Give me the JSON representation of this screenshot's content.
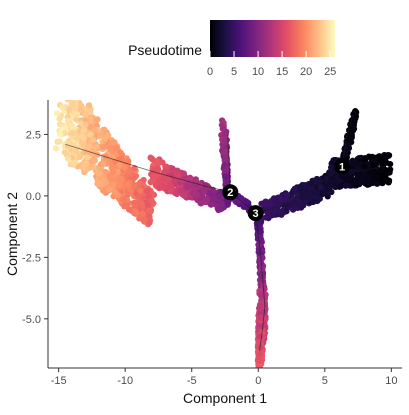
{
  "chart_data": {
    "type": "scatter",
    "title": "",
    "xlabel": "Component 1",
    "ylabel": "Component 2",
    "xlim": [
      -15.8,
      10.8
    ],
    "ylim": [
      -7.0,
      3.9
    ],
    "x_ticks": [
      -15,
      -10,
      -5,
      0,
      5,
      10
    ],
    "y_ticks": [
      2.5,
      0.0,
      -2.5,
      -5.0
    ],
    "grid": false,
    "legend": {
      "title": "Pseudotime",
      "position": "top",
      "range": [
        0,
        26
      ],
      "ticks": [
        0,
        5,
        10,
        15,
        20,
        25
      ],
      "colormap": "magma"
    },
    "branch_points": [
      {
        "label": "1",
        "x": 6.3,
        "y": 1.2
      },
      {
        "label": "2",
        "x": -2.1,
        "y": 0.15
      },
      {
        "label": "3",
        "x": -0.2,
        "y": -0.7
      }
    ],
    "trajectory_segments": [
      {
        "x": [
          -14.5,
          -8,
          -4,
          -2.1,
          -0.2,
          2.5,
          6.3
        ],
        "y": [
          2.1,
          1.0,
          0.4,
          0.15,
          -0.7,
          -0.3,
          1.2
        ],
        "t": [
          25,
          18,
          12,
          8,
          5,
          3,
          1
        ]
      },
      {
        "x": [
          6.3,
          7.5,
          9.5
        ],
        "y": [
          1.2,
          1.0,
          1.2
        ],
        "t": [
          1,
          0.5,
          0
        ]
      },
      {
        "x": [
          6.3,
          6.6,
          7.1
        ],
        "y": [
          1.2,
          2.3,
          3.3
        ],
        "t": [
          1,
          0.5,
          0.2
        ]
      },
      {
        "x": [
          -2.1,
          -2.2,
          -2.3
        ],
        "y": [
          0.15,
          1.5,
          2.5
        ],
        "t": [
          8,
          10,
          12
        ]
      },
      {
        "x": [
          -0.2,
          0.2,
          0.5,
          0.3,
          0.1
        ],
        "y": [
          -0.7,
          -2.5,
          -4.5,
          -5.5,
          -6.3
        ],
        "t": [
          5,
          10,
          13,
          15,
          17
        ]
      }
    ]
  }
}
